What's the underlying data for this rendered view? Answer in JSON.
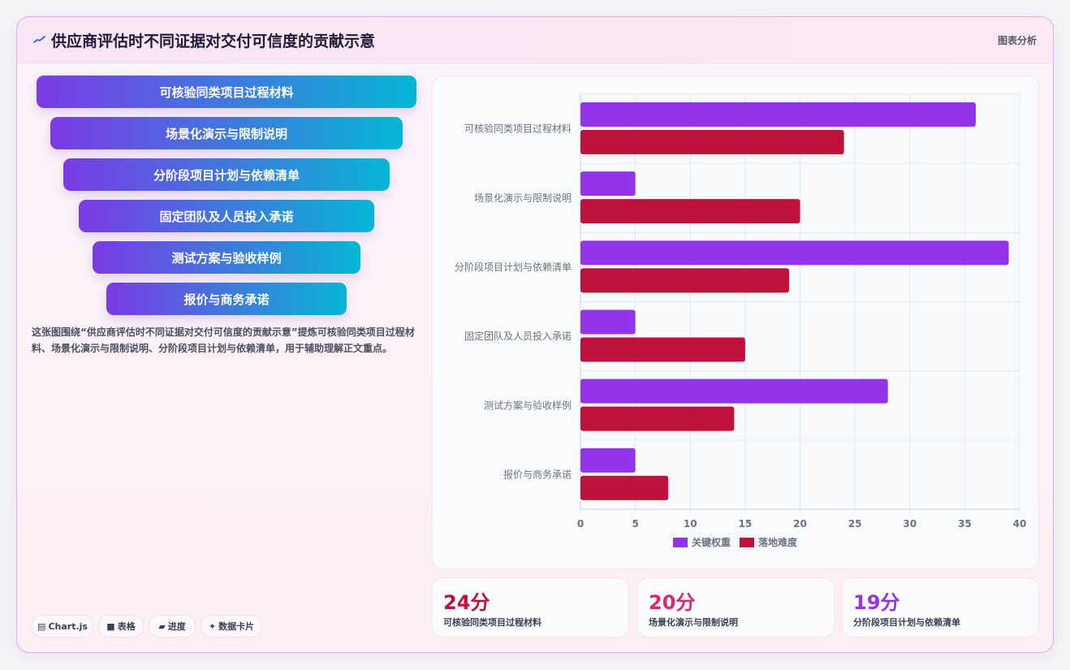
{
  "header": {
    "title": "供应商评估时不同证据对交付可信度的贡献示意",
    "tag": "图表分析",
    "icon": "trend-icon"
  },
  "funnel": [
    "可核验同类项目过程材料",
    "场景化演示与限制说明",
    "分阶段项目计划与依赖清单",
    "固定团队及人员投入承诺",
    "测试方案与验收样例",
    "报价与商务承诺"
  ],
  "description": "这张图围绕“供应商评估时不同证据对交付可信度的贡献示意”提炼可核验同类项目过程材料、场景化演示与限制说明、分阶段项目计划与依赖清单，用于辅助理解正文重点。",
  "chips": [
    {
      "icon": "chart-icon",
      "glyph": "▤",
      "label": "Chart.js"
    },
    {
      "icon": "table-icon",
      "glyph": "■",
      "label": "表格"
    },
    {
      "icon": "progress-icon",
      "glyph": "▰",
      "label": "进度"
    },
    {
      "icon": "sparkle-icon",
      "glyph": "✦",
      "label": "数据卡片"
    }
  ],
  "chart_data": {
    "type": "bar",
    "orientation": "horizontal",
    "categories": [
      "可核验同类项目过程材料",
      "场景化演示与限制说明",
      "分阶段项目计划与依赖清单",
      "固定团队及人员投入承诺",
      "测试方案与验收样例",
      "报价与商务承诺"
    ],
    "series": [
      {
        "name": "关键权重",
        "color": "#9333ea",
        "values": [
          36,
          5,
          39,
          5,
          28,
          5
        ]
      },
      {
        "name": "落地难度",
        "color": "#be123c",
        "values": [
          24,
          20,
          19,
          15,
          14,
          8
        ]
      }
    ],
    "xlim": [
      0,
      40
    ],
    "xticks": [
      0,
      5,
      10,
      15,
      20,
      25,
      30,
      35,
      40
    ],
    "grid": true,
    "legend": "bottom"
  },
  "stats": [
    {
      "value": "24分",
      "label": "可核验同类项目过程材料",
      "color": "#be123c"
    },
    {
      "value": "20分",
      "label": "场景化演示与限制说明",
      "color": "#db2777"
    },
    {
      "value": "19分",
      "label": "分阶段项目计划与依赖清单",
      "color": "#9333ea"
    }
  ]
}
